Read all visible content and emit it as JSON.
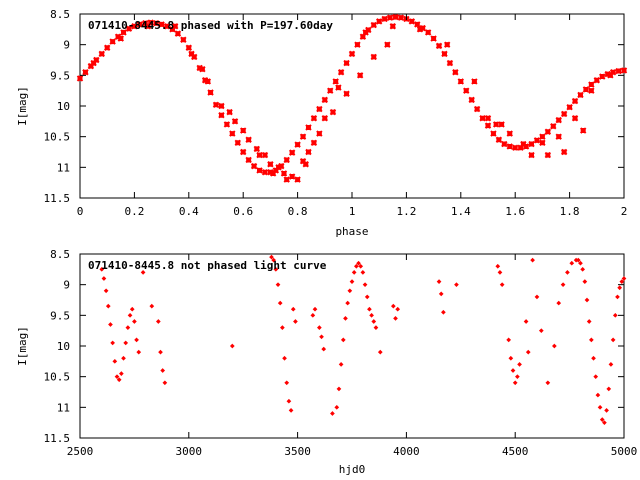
{
  "chart_data": [
    {
      "type": "scatter",
      "title": "071410-8445.8 phased with P=197.60day",
      "xlabel": "phase",
      "ylabel": "I[mag]",
      "xlim": [
        0,
        2
      ],
      "ylim": [
        11.5,
        8.5
      ],
      "y_inverted": true,
      "xticks": [
        "0",
        "0.2",
        "0.4",
        "0.6",
        "0.8",
        "1",
        "1.2",
        "1.4",
        "1.6",
        "1.8",
        "2"
      ],
      "yticks": [
        "8.5",
        "9",
        "9.5",
        "10",
        "10.5",
        "11",
        "11.5"
      ],
      "marker_color": "#ff0000",
      "grid": false,
      "x": [
        0.0,
        0.02,
        0.04,
        0.06,
        0.08,
        0.1,
        0.12,
        0.14,
        0.16,
        0.18,
        0.2,
        0.22,
        0.24,
        0.26,
        0.28,
        0.3,
        0.32,
        0.34,
        0.36,
        0.38,
        0.4,
        0.42,
        0.44,
        0.46,
        0.48,
        0.5,
        0.52,
        0.54,
        0.56,
        0.58,
        0.6,
        0.62,
        0.64,
        0.66,
        0.68,
        0.7,
        0.72,
        0.74,
        0.76,
        0.78,
        0.8,
        0.82,
        0.84,
        0.86,
        0.88,
        0.9,
        0.92,
        0.94,
        0.96,
        0.98,
        1.0,
        1.02,
        1.04,
        1.06,
        1.08,
        1.1,
        1.12,
        1.14,
        1.16,
        1.18,
        1.2,
        1.22,
        1.24,
        1.26,
        1.28,
        1.3,
        1.32,
        1.34,
        1.36,
        1.38,
        1.4,
        1.42,
        1.44,
        1.46,
        1.48,
        1.5,
        1.52,
        1.54,
        1.56,
        1.58,
        1.6,
        1.62,
        1.64,
        1.66,
        1.68,
        1.7,
        1.72,
        1.74,
        1.76,
        1.78,
        1.8,
        1.82,
        1.84,
        1.86,
        1.88,
        1.9,
        1.92,
        1.94,
        1.96,
        1.98,
        2.0,
        0.05,
        0.15,
        0.25,
        0.35,
        0.45,
        0.55,
        0.6,
        0.65,
        0.7,
        0.75,
        0.78,
        0.82,
        0.86,
        0.9,
        0.95,
        1.05,
        1.15,
        1.25,
        1.35,
        1.45,
        1.55,
        1.63,
        1.7,
        1.76,
        1.82,
        1.88,
        1.95,
        0.52,
        0.57,
        0.62,
        0.68,
        0.73,
        0.8,
        0.84,
        0.88,
        0.93,
        0.98,
        1.03,
        1.08,
        1.13,
        0.41,
        0.47,
        0.66,
        0.71,
        0.76,
        0.83,
        1.5,
        1.53,
        1.58,
        1.66,
        1.72,
        1.78,
        1.85
      ],
      "y": [
        9.55,
        9.45,
        9.35,
        9.25,
        9.15,
        9.05,
        8.95,
        8.87,
        8.8,
        8.74,
        8.7,
        8.67,
        8.65,
        8.64,
        8.65,
        8.67,
        8.7,
        8.75,
        8.82,
        8.92,
        9.05,
        9.2,
        9.38,
        9.58,
        9.78,
        9.98,
        10.15,
        10.3,
        10.45,
        10.6,
        10.75,
        10.88,
        10.98,
        11.05,
        11.08,
        11.08,
        11.05,
        10.98,
        10.88,
        10.76,
        10.63,
        10.5,
        10.35,
        10.2,
        10.05,
        9.9,
        9.75,
        9.6,
        9.45,
        9.3,
        9.15,
        9.0,
        8.87,
        8.76,
        8.68,
        8.62,
        8.58,
        8.56,
        8.55,
        8.56,
        8.58,
        8.62,
        8.67,
        8.73,
        8.8,
        8.9,
        9.02,
        9.15,
        9.3,
        9.45,
        9.6,
        9.75,
        9.9,
        10.05,
        10.2,
        10.32,
        10.45,
        10.55,
        10.62,
        10.66,
        10.68,
        10.68,
        10.66,
        10.62,
        10.56,
        10.5,
        10.42,
        10.33,
        10.23,
        10.13,
        10.02,
        9.92,
        9.82,
        9.73,
        9.65,
        9.58,
        9.52,
        9.48,
        9.45,
        9.43,
        9.42,
        9.3,
        8.9,
        8.7,
        8.7,
        9.4,
        10.1,
        10.4,
        10.7,
        10.95,
        11.1,
        11.15,
        10.9,
        10.6,
        10.2,
        9.7,
        8.8,
        8.7,
        8.75,
        9.0,
        9.6,
        10.3,
        10.62,
        10.6,
        10.5,
        10.2,
        9.75,
        9.5,
        10.0,
        10.25,
        10.55,
        10.8,
        11.0,
        11.2,
        10.75,
        10.45,
        10.1,
        9.8,
        9.5,
        9.2,
        9.0,
        9.15,
        9.6,
        10.8,
        11.1,
        11.2,
        10.95,
        10.2,
        10.3,
        10.45,
        10.8,
        10.8,
        10.75,
        10.4
      ]
    },
    {
      "type": "scatter",
      "title": "071410-8445.8 not phased light curve",
      "xlabel": "hjd0",
      "ylabel": "I[mag]",
      "xlim": [
        2500,
        5000
      ],
      "ylim": [
        11.5,
        8.5
      ],
      "y_inverted": true,
      "xticks": [
        "2500",
        "3000",
        "3500",
        "4000",
        "4500",
        "5000"
      ],
      "yticks": [
        "8.5",
        "9",
        "9.5",
        "10",
        "10.5",
        "11",
        "11.5"
      ],
      "marker_color": "#ff0000",
      "grid": false,
      "x": [
        2600,
        2610,
        2620,
        2630,
        2640,
        2650,
        2660,
        2670,
        2680,
        2690,
        2700,
        2710,
        2720,
        2730,
        2740,
        2750,
        2760,
        2770,
        2790,
        2830,
        2860,
        2870,
        2880,
        2890,
        3200,
        3380,
        3390,
        3400,
        3410,
        3420,
        3430,
        3440,
        3450,
        3460,
        3470,
        3480,
        3490,
        3570,
        3580,
        3600,
        3610,
        3620,
        3660,
        3680,
        3690,
        3700,
        3710,
        3720,
        3730,
        3740,
        3750,
        3760,
        3770,
        3780,
        3790,
        3800,
        3810,
        3820,
        3830,
        3840,
        3850,
        3860,
        3880,
        3940,
        3950,
        3960,
        4150,
        4160,
        4170,
        4230,
        4420,
        4430,
        4440,
        4470,
        4480,
        4490,
        4500,
        4510,
        4520,
        4550,
        4560,
        4580,
        4600,
        4620,
        4650,
        4680,
        4700,
        4720,
        4740,
        4760,
        4780,
        4790,
        4800,
        4810,
        4820,
        4830,
        4840,
        4850,
        4860,
        4870,
        4880,
        4890,
        4900,
        4910,
        4920,
        4930,
        4940,
        4950,
        4960,
        4970,
        4980,
        4990,
        5000
      ],
      "y": [
        8.75,
        8.9,
        9.1,
        9.35,
        9.65,
        9.95,
        10.25,
        10.5,
        10.55,
        10.45,
        10.2,
        9.95,
        9.7,
        9.5,
        9.4,
        9.6,
        9.9,
        10.1,
        8.8,
        9.35,
        9.6,
        10.1,
        10.4,
        10.6,
        10.0,
        8.55,
        8.6,
        8.75,
        9.0,
        9.3,
        9.7,
        10.2,
        10.6,
        10.9,
        11.05,
        9.4,
        9.6,
        9.5,
        9.4,
        9.7,
        9.85,
        10.05,
        11.1,
        11.0,
        10.7,
        10.3,
        9.9,
        9.55,
        9.3,
        9.1,
        8.95,
        8.8,
        8.7,
        8.65,
        8.7,
        8.8,
        9.0,
        9.2,
        9.4,
        9.5,
        9.6,
        9.7,
        10.1,
        9.35,
        9.55,
        9.4,
        8.95,
        9.15,
        9.45,
        9.0,
        8.7,
        8.8,
        9.0,
        9.9,
        10.2,
        10.4,
        10.6,
        10.5,
        10.3,
        9.6,
        10.1,
        8.6,
        9.2,
        9.75,
        10.6,
        10.0,
        9.3,
        9.0,
        8.8,
        8.65,
        8.6,
        8.6,
        8.65,
        8.75,
        8.95,
        9.25,
        9.6,
        9.9,
        10.2,
        10.5,
        10.8,
        11.0,
        11.2,
        11.25,
        11.05,
        10.7,
        10.3,
        9.9,
        9.5,
        9.2,
        9.05,
        8.95,
        8.9
      ]
    }
  ]
}
